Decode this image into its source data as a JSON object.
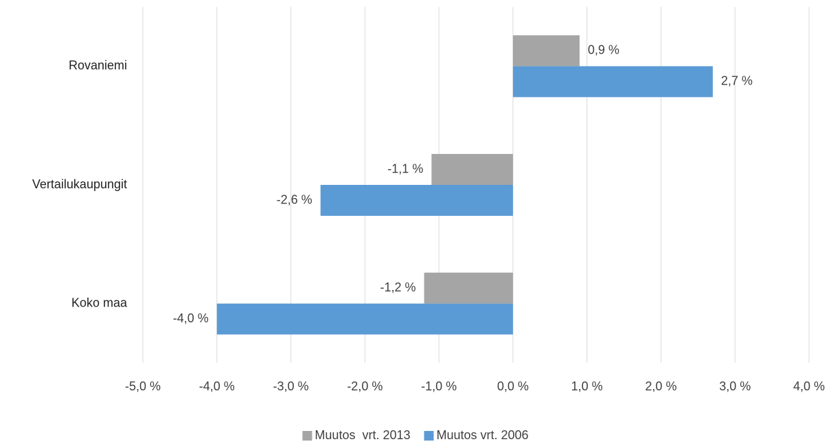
{
  "chart_data": {
    "type": "hbar",
    "categories": [
      "Rovaniemi",
      "Vertailukaupungit",
      "Koko maa"
    ],
    "series": [
      {
        "name": "Muutos  vrt. 2013",
        "color": "#a5a5a5",
        "values": [
          0.9,
          -1.1,
          -1.2
        ],
        "value_labels": [
          "0,9 %",
          "-1,1 %",
          "-1,2 %"
        ]
      },
      {
        "name": "Muutos vrt. 2006",
        "color": "#5b9bd5",
        "values": [
          2.7,
          -2.6,
          -4.0
        ],
        "value_labels": [
          "2,7 %",
          "-2,6 %",
          "-4,0 %"
        ]
      }
    ],
    "xlim": [
      -5,
      4
    ],
    "xticks": [
      {
        "value": -5,
        "label": "-5,0 %"
      },
      {
        "value": -4,
        "label": "-4,0 %"
      },
      {
        "value": -3,
        "label": "-3,0 %"
      },
      {
        "value": -2,
        "label": "-2,0 %"
      },
      {
        "value": -1,
        "label": "-1,0 %"
      },
      {
        "value": 0,
        "label": "0,0 %"
      },
      {
        "value": 1,
        "label": "1,0 %"
      },
      {
        "value": 2,
        "label": "2,0 %"
      },
      {
        "value": 3,
        "label": "3,0 %"
      },
      {
        "value": 4,
        "label": "4,0 %"
      }
    ],
    "grid": true,
    "legend": "bottom"
  }
}
